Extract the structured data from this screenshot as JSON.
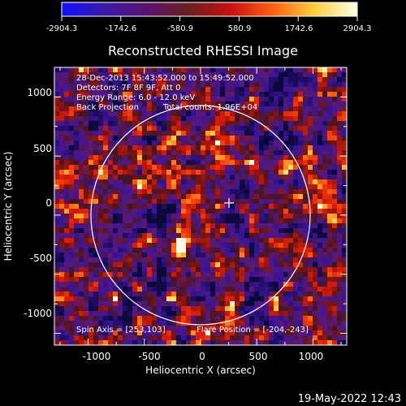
{
  "colorbar": {
    "ticks": [
      "-2904.3",
      "-1742.6",
      "-580.9",
      "580.9",
      "1742.6",
      "2904.3"
    ],
    "stops": [
      "#1010ff",
      "#3a1aa8",
      "#5a1270",
      "#6a1f20",
      "#c81010",
      "#ff6010",
      "#ffd040",
      "#ffffe8"
    ]
  },
  "chart_data": {
    "type": "heatmap",
    "title": "Reconstructed RHESSI Image",
    "xlabel": "Heliocentric X (arcsec)",
    "ylabel": "Heliocentric Y (arcsec)",
    "xlim": [
      -1300,
      1300
    ],
    "ylim": [
      -1100,
      1250
    ],
    "x_ticks": [
      "-1000",
      "-500",
      "0",
      "500",
      "1000"
    ],
    "y_ticks": [
      "1000",
      "500",
      "0",
      "-500",
      "-1000"
    ],
    "x_tick_values": [
      -1000,
      -500,
      0,
      500,
      1000
    ],
    "y_tick_values": [
      1000,
      500,
      0,
      -500,
      -1000
    ],
    "clim": [
      -2904.3,
      2904.3
    ],
    "solar_disk": {
      "center": [
        0,
        0
      ],
      "radius_arcsec": 975
    },
    "map_center": [
      253,
      103
    ],
    "bright_source": {
      "x": -210,
      "y": -240
    },
    "annotations": {
      "line1": "28-Dec-2013 15:43:52.000 to 15:49:52.000",
      "line2": "Detectors: 7F 8F 9F, Att 0",
      "line3": "Energy Range: 6.0 - 12.0 keV",
      "line4_left": "Back Projection",
      "line4_right": "Total counts: 1.96E+04",
      "spin_axis": "Spin Axis = [253,103]",
      "flare_position": "Flare Position = [-204,-243]"
    }
  },
  "footer": {
    "timestamp": "19-May-2022 12:43"
  },
  "icons": {
    "center_marker": "crosshair-plus-icon"
  }
}
